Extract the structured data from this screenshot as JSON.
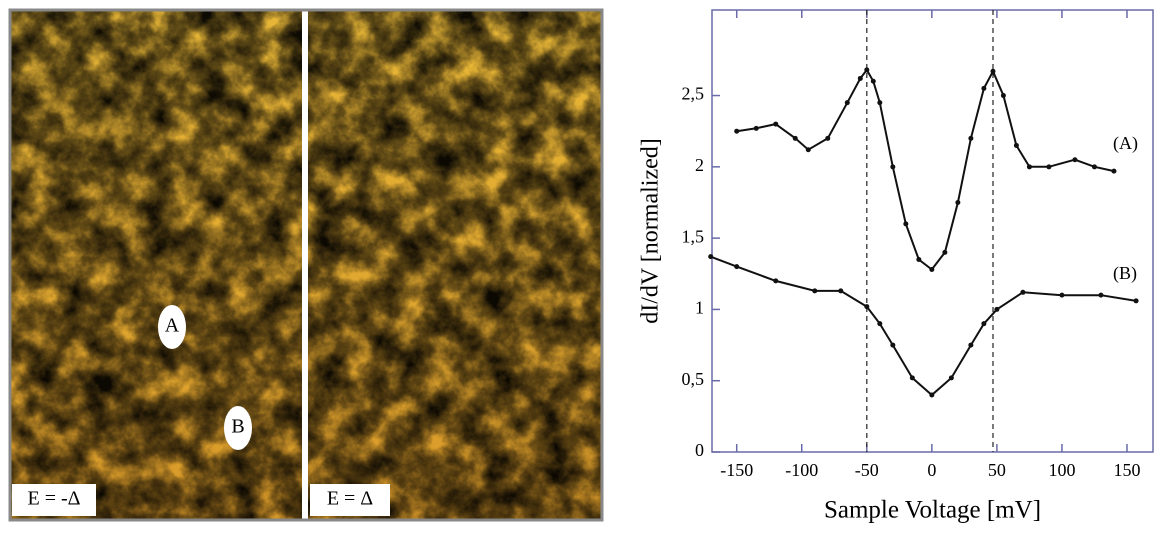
{
  "images": [
    {
      "label": "E = -Δ",
      "markers": [
        "A",
        "B"
      ]
    },
    {
      "label": "E = Δ"
    }
  ],
  "chart_data": {
    "type": "line",
    "x_label": "Sample Voltage [mV]",
    "y_label": "dI/dV [normalized]",
    "xlim": [
      -169,
      170
    ],
    "ylim": [
      0,
      3.1
    ],
    "xticks": [
      -150,
      -100,
      -50,
      0,
      50,
      100,
      150
    ],
    "yticks": [
      0,
      {
        "value": 0.5,
        "label": "0,5"
      },
      1,
      {
        "value": 1.5,
        "label": "1,5"
      },
      2,
      {
        "value": 2.5,
        "label": "2,5"
      }
    ],
    "reference_lines": [
      -50,
      47
    ],
    "color": "#111111",
    "series": [
      {
        "name": "(A)",
        "x": [
          -150,
          -135,
          -120,
          -105,
          -95,
          -80,
          -65,
          -55,
          -50,
          -45,
          -40,
          -30,
          -20,
          -10,
          0,
          10,
          20,
          30,
          40,
          47,
          55,
          65,
          75,
          90,
          110,
          125,
          140
        ],
        "values": [
          2.25,
          2.27,
          2.3,
          2.2,
          2.12,
          2.2,
          2.45,
          2.62,
          2.68,
          2.6,
          2.45,
          2.0,
          1.6,
          1.35,
          1.28,
          1.4,
          1.75,
          2.2,
          2.55,
          2.67,
          2.5,
          2.15,
          2.0,
          2.0,
          2.05,
          2.0,
          1.97
        ]
      },
      {
        "name": "(B)",
        "x": [
          -170,
          -150,
          -120,
          -90,
          -70,
          -50,
          -40,
          -30,
          -15,
          0,
          15,
          30,
          40,
          50,
          70,
          100,
          130,
          157
        ],
        "values": [
          1.37,
          1.3,
          1.2,
          1.13,
          1.13,
          1.02,
          0.9,
          0.75,
          0.52,
          0.4,
          0.52,
          0.75,
          0.9,
          1.0,
          1.12,
          1.1,
          1.1,
          1.06
        ]
      }
    ]
  }
}
